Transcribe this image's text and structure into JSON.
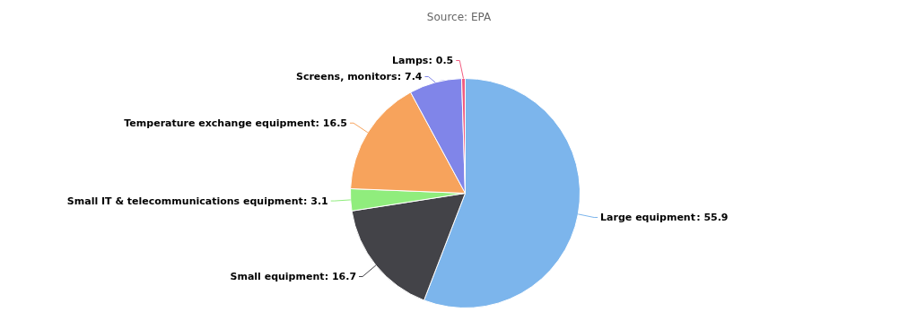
{
  "chart_data": {
    "type": "pie",
    "annotations": [
      "Source: EPA"
    ],
    "categories": [
      "Large equipment",
      "Small equipment",
      "Small IT & telecommunications equipment",
      "Temperature exchange equipment",
      "Screens, monitors",
      "Lamps"
    ],
    "values": [
      55.9,
      16.7,
      3.1,
      16.5,
      7.4,
      0.5
    ],
    "colors": [
      "#7cb5ec",
      "#434348",
      "#90ed7d",
      "#f7a35c",
      "#8085e9",
      "#f15c80"
    ],
    "value_labels": [
      ": 55.9",
      ": 16.7",
      ": 3.1",
      ": 16.5",
      ": 7.4",
      ": 0.5"
    ]
  }
}
